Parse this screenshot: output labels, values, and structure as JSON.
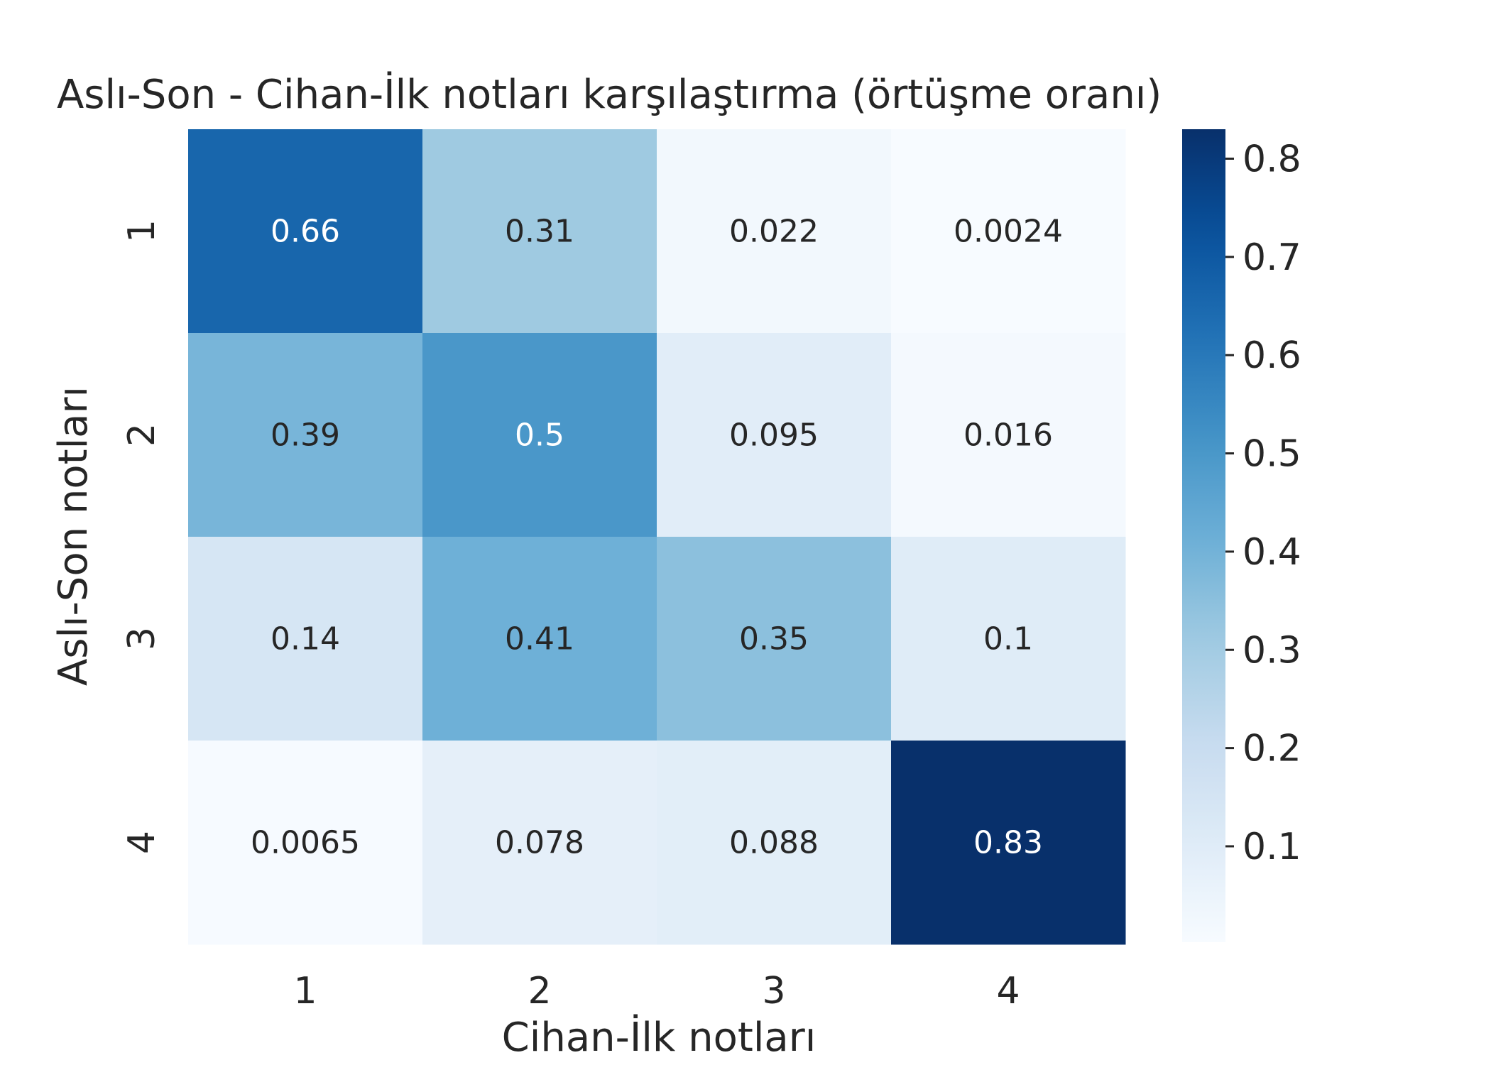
{
  "chart_data": {
    "type": "heatmap",
    "title": "Aslı-Son - Cihan-İlk notları karşılaştırma (örtüşme oranı)",
    "xlabel": "Cihan-İlk notları",
    "ylabel": "Aslı-Son notları",
    "x_categories": [
      "1",
      "2",
      "3",
      "4"
    ],
    "y_categories": [
      "1",
      "2",
      "3",
      "4"
    ],
    "values": [
      [
        0.66,
        0.31,
        0.022,
        0.0024
      ],
      [
        0.39,
        0.5,
        0.095,
        0.016
      ],
      [
        0.14,
        0.41,
        0.35,
        0.1
      ],
      [
        0.0065,
        0.078,
        0.088,
        0.83
      ]
    ],
    "cell_labels": [
      [
        "0.66",
        "0.31",
        "0.022",
        "0.0024"
      ],
      [
        "0.39",
        "0.5",
        "0.095",
        "0.016"
      ],
      [
        "0.14",
        "0.41",
        "0.35",
        "0.1"
      ],
      [
        "0.0065",
        "0.078",
        "0.088",
        "0.83"
      ]
    ],
    "colormap": "Blues",
    "colorbar": {
      "range": [
        0.0024,
        0.83
      ],
      "ticks": [
        0.1,
        0.2,
        0.3,
        0.4,
        0.5,
        0.6,
        0.7,
        0.8
      ],
      "tick_labels": [
        "0.1",
        "0.2",
        "0.3",
        "0.4",
        "0.5",
        "0.6",
        "0.7",
        "0.8"
      ]
    },
    "colors": {
      "text_dark": "#262626",
      "text_light": "#ffffff"
    }
  }
}
